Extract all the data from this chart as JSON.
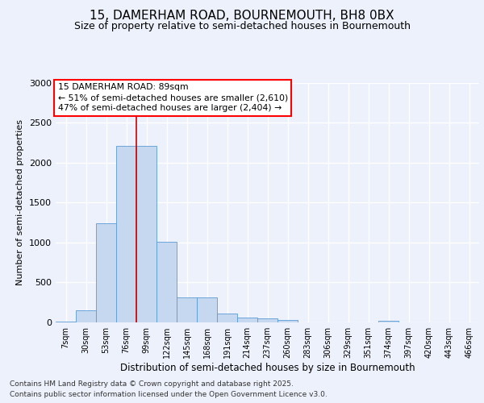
{
  "title": "15, DAMERHAM ROAD, BOURNEMOUTH, BH8 0BX",
  "subtitle": "Size of property relative to semi-detached houses in Bournemouth",
  "xlabel": "Distribution of semi-detached houses by size in Bournemouth",
  "ylabel": "Number of semi-detached properties",
  "bar_color": "#c5d8ef",
  "bar_edge_color": "#5b9bd5",
  "annotation_line1": "15 DAMERHAM ROAD: 89sqm",
  "annotation_line2": "← 51% of semi-detached houses are smaller (2,610)",
  "annotation_line3": "47% of semi-detached houses are larger (2,404) →",
  "vline_color": "#cc0000",
  "vline_x": 3.5,
  "categories": [
    "7sqm",
    "30sqm",
    "53sqm",
    "76sqm",
    "99sqm",
    "122sqm",
    "145sqm",
    "168sqm",
    "191sqm",
    "214sqm",
    "237sqm",
    "260sqm",
    "283sqm",
    "306sqm",
    "329sqm",
    "351sqm",
    "374sqm",
    "397sqm",
    "420sqm",
    "443sqm",
    "466sqm"
  ],
  "values": [
    10,
    155,
    1240,
    2210,
    2210,
    1010,
    315,
    315,
    110,
    60,
    55,
    28,
    0,
    0,
    0,
    0,
    22,
    0,
    0,
    0,
    0
  ],
  "ylim": [
    0,
    3000
  ],
  "yticks": [
    0,
    500,
    1000,
    1500,
    2000,
    2500,
    3000
  ],
  "bg_color": "#edf1fb",
  "grid_color": "#ffffff",
  "title_fontsize": 11,
  "subtitle_fontsize": 9,
  "ylabel_fontsize": 8,
  "xlabel_fontsize": 8.5,
  "tick_fontsize": 8,
  "xtick_fontsize": 7,
  "footer_fontsize": 6.5,
  "footer1": "Contains HM Land Registry data © Crown copyright and database right 2025.",
  "footer2": "Contains public sector information licensed under the Open Government Licence v3.0."
}
